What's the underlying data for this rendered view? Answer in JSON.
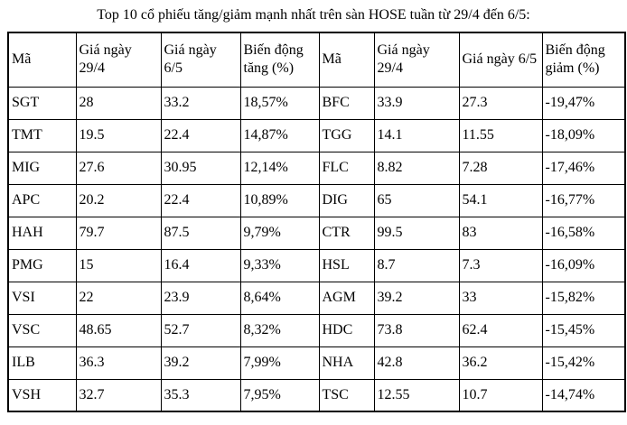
{
  "title": "Top 10 cổ phiếu tăng/giảm mạnh nhất trên sàn HOSE tuần từ 29/4 đến 6/5:",
  "colors": {
    "text": "#000000",
    "border": "#000000",
    "background": "#ffffff"
  },
  "table": {
    "headers": [
      "Mã",
      "Giá ngày 29/4",
      "Giá ngày 6/5",
      "Biến động tăng (%)",
      "Mã",
      "Giá ngày 29/4",
      "Giá ngày 6/5",
      "Biến động giảm (%)"
    ],
    "rows": [
      [
        "SGT",
        "28",
        "33.2",
        "18,57%",
        "BFC",
        "33.9",
        "27.3",
        "-19,47%"
      ],
      [
        "TMT",
        "19.5",
        "22.4",
        "14,87%",
        "TGG",
        "14.1",
        "11.55",
        "-18,09%"
      ],
      [
        "MIG",
        "27.6",
        "30.95",
        "12,14%",
        "FLC",
        "8.82",
        "7.28",
        "-17,46%"
      ],
      [
        "APC",
        "20.2",
        "22.4",
        "10,89%",
        "DIG",
        "65",
        "54.1",
        "-16,77%"
      ],
      [
        "HAH",
        "79.7",
        "87.5",
        "9,79%",
        "CTR",
        "99.5",
        "83",
        "-16,58%"
      ],
      [
        "PMG",
        "15",
        "16.4",
        "9,33%",
        "HSL",
        "8.7",
        "7.3",
        "-16,09%"
      ],
      [
        "VSI",
        "22",
        "23.9",
        "8,64%",
        "AGM",
        "39.2",
        "33",
        "-15,82%"
      ],
      [
        "VSC",
        "48.65",
        "52.7",
        "8,32%",
        "HDC",
        "73.8",
        "62.4",
        "-15,45%"
      ],
      [
        "ILB",
        "36.3",
        "39.2",
        "7,99%",
        "NHA",
        "42.8",
        "36.2",
        "-15,42%"
      ],
      [
        "VSH",
        "32.7",
        "35.3",
        "7,95%",
        "TSC",
        "12.55",
        "10.7",
        "-14,74%"
      ]
    ]
  }
}
